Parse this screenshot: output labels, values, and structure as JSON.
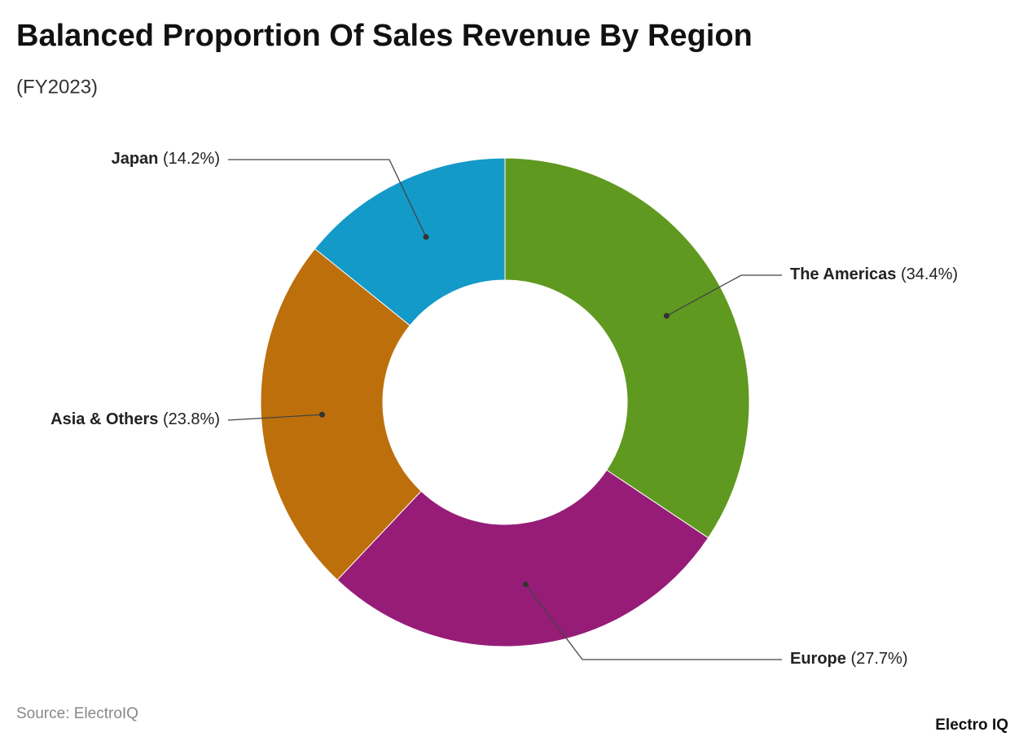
{
  "chart_data": {
    "type": "donut",
    "title": "Balanced Proportion Of Sales Revenue By Region",
    "subtitle": "(FY2023)",
    "categories": [
      "The Americas",
      "Europe",
      "Asia & Others",
      "Japan"
    ],
    "values": [
      34.4,
      27.7,
      23.8,
      14.2
    ],
    "value_labels": [
      "(34.4%)",
      "(27.7%)",
      "(23.8%)",
      "(14.2%)"
    ],
    "colors": [
      "#5f991f",
      "#961c78",
      "#bd6f0c",
      "#139ac9"
    ],
    "source": "Source: ElectroIQ",
    "logo": "Electro IQ"
  }
}
